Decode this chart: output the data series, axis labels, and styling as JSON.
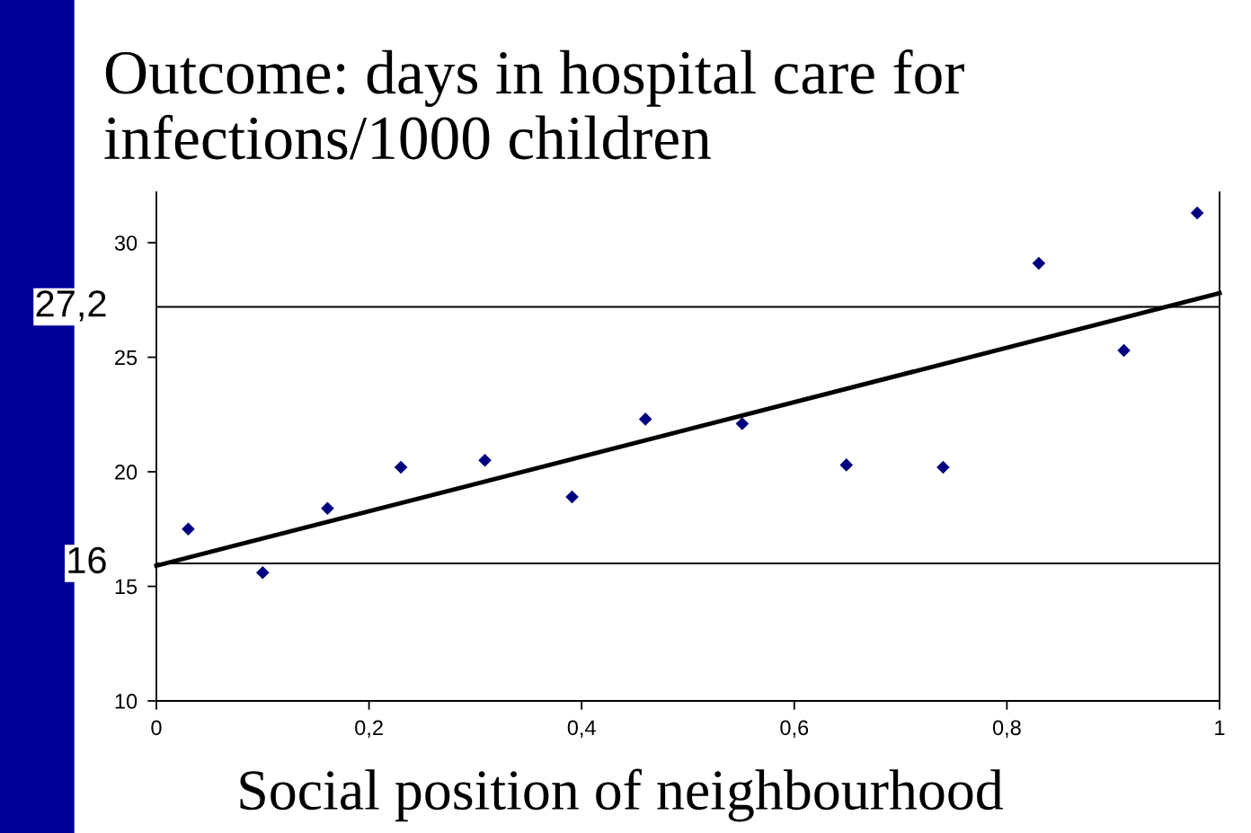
{
  "chart_data": {
    "type": "scatter",
    "title": "Outcome: days in hospital care for infections/1000 children",
    "xlabel": "Social position of neighbourhood",
    "series": [
      {
        "color": "#000080",
        "marker": "diamond",
        "x": [
          0.03,
          0.1,
          0.161,
          0.23,
          0.309,
          0.391,
          0.46,
          0.551,
          0.649,
          0.74,
          0.83,
          0.91,
          0.979
        ],
        "values": [
          17.5,
          15.6,
          18.4,
          20.2,
          20.5,
          18.9,
          22.3,
          22.1,
          20.3,
          20.2,
          29.1,
          25.3,
          31.3
        ]
      },
      {
        "type": "line",
        "color": "#000000",
        "marker": "none",
        "line_style": "solid",
        "x": [
          0,
          1
        ],
        "values": [
          15.9,
          27.8
        ]
      }
    ],
    "ref_lines": [
      {
        "axis": "y",
        "value": 27.2,
        "label": "27,2",
        "color": "#000000"
      },
      {
        "axis": "y",
        "value": 16,
        "label": "16",
        "color": "#000000"
      }
    ],
    "xlim": [
      0,
      1
    ],
    "xticks": [
      0,
      {
        "value": 0.2,
        "label": "0,2"
      },
      {
        "value": 0.4,
        "label": "0,4"
      },
      {
        "value": 0.6,
        "label": "0,6"
      },
      {
        "value": 0.8,
        "label": "0,8"
      },
      1
    ],
    "ylim": [
      10,
      32.2
    ],
    "yticks": [
      10,
      15,
      20,
      25,
      30
    ],
    "grid": false
  }
}
